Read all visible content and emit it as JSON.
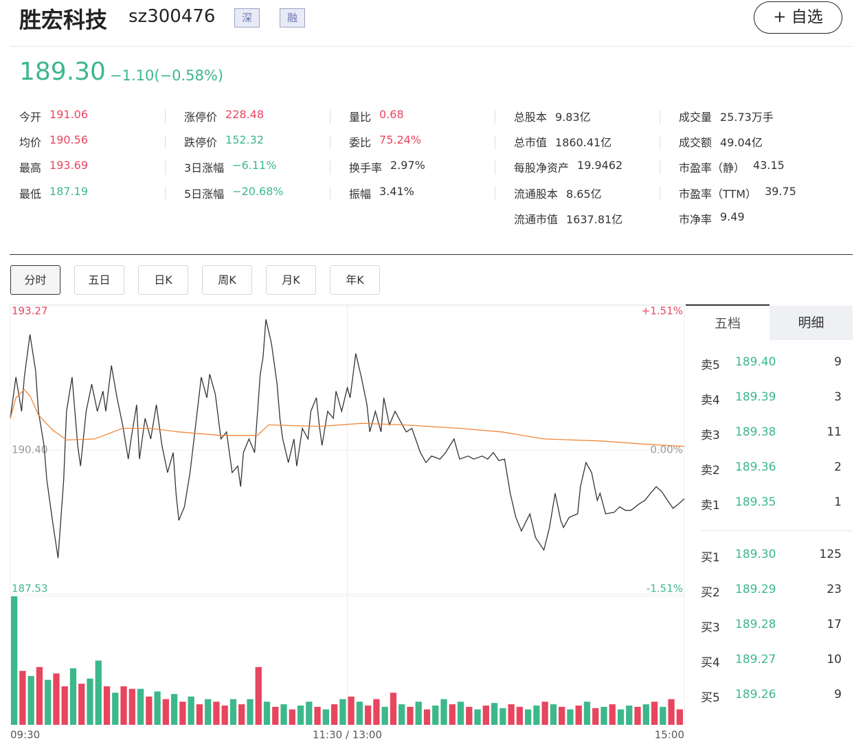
{
  "header": {
    "name": "胜宏科技",
    "code": "sz300476",
    "tags": [
      "深",
      "融"
    ],
    "button": "+ 自选"
  },
  "quote": {
    "price": "189.30",
    "change": "−1.10(−0.58%)",
    "color": "#3cb88a"
  },
  "stats": [
    [
      {
        "label": "今开",
        "value": "191.06",
        "color": "#e8455e"
      },
      {
        "label": "均价",
        "value": "190.56",
        "color": "#e8455e"
      },
      {
        "label": "最高",
        "value": "193.69",
        "color": "#e8455e"
      },
      {
        "label": "最低",
        "value": "187.19",
        "color": "#3cb88a"
      }
    ],
    [
      {
        "label": "涨停价",
        "value": "228.48",
        "color": "#e8455e"
      },
      {
        "label": "跌停价",
        "value": "152.32",
        "color": "#3cb88a"
      },
      {
        "label": "3日涨幅",
        "value": "−6.11%",
        "color": "#3cb88a"
      },
      {
        "label": "5日涨幅",
        "value": "−20.68%",
        "color": "#3cb88a"
      }
    ],
    [
      {
        "label": "量比",
        "value": "0.68",
        "color": "#e8455e"
      },
      {
        "label": "委比",
        "value": "75.24%",
        "color": "#e8455e"
      },
      {
        "label": "换手率",
        "value": "2.97%",
        "color": "#333333"
      },
      {
        "label": "振幅",
        "value": "3.41%",
        "color": "#333333"
      }
    ],
    [
      {
        "label": "总股本",
        "value": "9.83亿",
        "color": "#333333"
      },
      {
        "label": "总市值",
        "value": "1860.41亿",
        "color": "#333333"
      },
      {
        "label": "每股净资产",
        "value": "19.9462",
        "color": "#333333"
      },
      {
        "label": "流通股本",
        "value": "8.65亿",
        "color": "#333333"
      },
      {
        "label": "流通市值",
        "value": "1637.81亿",
        "color": "#333333"
      }
    ],
    [
      {
        "label": "成交量",
        "value": "25.73万手",
        "color": "#333333"
      },
      {
        "label": "成交额",
        "value": "49.04亿",
        "color": "#333333"
      },
      {
        "label": "市盈率（静）",
        "value": "43.15",
        "color": "#333333"
      },
      {
        "label": "市盈率（TTM）",
        "value": "39.75",
        "color": "#333333"
      },
      {
        "label": "市净率",
        "value": "9.49",
        "color": "#333333"
      }
    ]
  ],
  "chart_tabs": [
    "分时",
    "五日",
    "日K",
    "周K",
    "月K",
    "年K"
  ],
  "chart_data": {
    "type": "line",
    "grid": true,
    "xlim": [
      0,
      240
    ],
    "xticks": [
      {
        "value": 0,
        "label": "09:30"
      },
      {
        "value": 120,
        "label": "11:30 / 13:00"
      },
      {
        "value": 240,
        "label": "15:00"
      }
    ],
    "ylim": [
      187.53,
      193.27
    ],
    "yticks": [
      193.27,
      {
        "value": 190.4,
        "label": "190.40"
      },
      187.53
    ],
    "ytick_colors": [
      "#e8455e",
      "#999999",
      "#3cb88a"
    ],
    "y2lim": [
      -1.51,
      1.51
    ],
    "y2ticks": [
      {
        "value": 1.51,
        "label": "+1.51%"
      },
      {
        "value": 0,
        "label": "0.00%"
      },
      {
        "value": -1.51,
        "label": "-1.51%"
      }
    ],
    "series": [
      {
        "color": "#333333",
        "x": [
          0,
          2,
          4,
          5,
          7,
          9,
          10,
          12,
          13,
          15,
          17,
          19,
          20,
          22,
          24,
          25,
          27,
          29,
          31,
          33,
          34,
          36,
          38,
          40,
          42,
          43,
          45,
          46,
          48,
          50,
          52,
          54,
          56,
          58,
          59,
          60,
          62,
          64,
          66,
          68,
          70,
          71,
          73,
          75,
          77,
          79,
          81,
          82,
          83,
          85,
          87,
          89,
          90,
          91,
          93,
          95,
          96,
          97,
          99,
          101,
          102,
          104,
          106,
          107,
          109,
          110,
          111,
          113,
          115,
          116,
          118,
          120,
          121,
          123,
          125,
          127,
          128,
          130,
          132,
          133,
          135,
          137,
          139,
          141,
          143,
          146,
          148,
          150,
          153,
          155,
          158,
          160,
          163,
          165,
          168,
          170,
          172,
          174,
          176,
          178,
          180,
          182,
          185,
          187,
          190,
          192,
          194,
          196,
          197,
          199,
          202,
          203,
          205,
          207,
          209,
          210,
          212,
          215,
          217,
          219,
          221,
          224,
          226,
          228,
          230,
          232,
          234,
          236,
          238,
          240
        ],
        "values": [
          191.03,
          191.85,
          191.17,
          191.85,
          192.7,
          191.98,
          191.17,
          190.49,
          189.81,
          189.0,
          188.25,
          189.81,
          191.17,
          191.85,
          190.49,
          190.08,
          191.17,
          191.71,
          191.17,
          191.57,
          191.17,
          192.08,
          191.44,
          190.9,
          190.22,
          190.62,
          191.3,
          190.22,
          191.03,
          190.62,
          191.3,
          190.49,
          189.95,
          190.35,
          189.54,
          189.0,
          189.27,
          189.95,
          190.9,
          191.85,
          191.44,
          191.91,
          191.51,
          190.62,
          190.76,
          189.95,
          190.08,
          189.67,
          190.35,
          190.62,
          190.35,
          191.91,
          192.25,
          193.0,
          192.52,
          191.71,
          191.03,
          190.62,
          190.15,
          190.62,
          190.08,
          190.83,
          190.62,
          191.17,
          191.44,
          190.9,
          190.49,
          191.17,
          191.03,
          191.57,
          191.17,
          191.64,
          191.44,
          192.32,
          191.85,
          191.3,
          190.76,
          191.17,
          190.76,
          191.44,
          190.9,
          191.17,
          190.96,
          190.76,
          190.83,
          190.35,
          190.15,
          190.28,
          190.22,
          190.35,
          190.62,
          190.22,
          190.28,
          190.22,
          190.28,
          190.22,
          190.35,
          190.19,
          190.22,
          189.54,
          189.06,
          188.79,
          189.13,
          188.66,
          188.41,
          188.86,
          189.54,
          189.0,
          188.86,
          189.06,
          189.13,
          189.67,
          190.15,
          189.95,
          189.4,
          189.54,
          189.13,
          189.16,
          189.27,
          189.2,
          189.2,
          189.33,
          189.4,
          189.54,
          189.67,
          189.57,
          189.4,
          189.24,
          189.33,
          189.43
        ]
      },
      {
        "color": "#f0873a",
        "x": [
          0,
          2,
          5,
          7,
          10,
          15,
          20,
          30,
          40,
          50,
          60,
          75,
          88,
          92,
          110,
          125,
          140,
          160,
          175,
          190,
          210,
          225,
          240
        ],
        "values": [
          191.03,
          191.44,
          191.6,
          191.48,
          191.1,
          190.8,
          190.6,
          190.62,
          190.83,
          190.83,
          190.76,
          190.69,
          190.69,
          190.9,
          190.87,
          190.93,
          190.9,
          190.83,
          190.76,
          190.62,
          190.58,
          190.52,
          190.47
        ]
      }
    ],
    "volume": {
      "ylim": [
        0,
        100
      ],
      "values": [
        100,
        42,
        38,
        45,
        35,
        40,
        30,
        44,
        32,
        36,
        50,
        30,
        25,
        30,
        28,
        28,
        22,
        26,
        20,
        24,
        18,
        22,
        16,
        20,
        18,
        15,
        20,
        16,
        20,
        45,
        18,
        14,
        16,
        12,
        15,
        18,
        14,
        12,
        16,
        20,
        22,
        18,
        15,
        20,
        14,
        25,
        16,
        14,
        18,
        12,
        15,
        20,
        16,
        18,
        14,
        12,
        15,
        17,
        13,
        16,
        14,
        12,
        15,
        18,
        16,
        14,
        12,
        15,
        18,
        13,
        14,
        16,
        12,
        15,
        14,
        16,
        18,
        14,
        20,
        12
      ],
      "colors": [
        "#3cb88a",
        "#e8455e",
        "#3cb88a",
        "#e8455e",
        "#3cb88a",
        "#e8455e",
        "#e8455e",
        "#3cb88a",
        "#e8455e",
        "#3cb88a",
        "#3cb88a",
        "#e8455e",
        "#3cb88a",
        "#e8455e",
        "#e8455e",
        "#3cb88a",
        "#e8455e",
        "#3cb88a",
        "#e8455e",
        "#3cb88a",
        "#e8455e",
        "#3cb88a",
        "#e8455e",
        "#3cb88a",
        "#e8455e",
        "#e8455e",
        "#3cb88a",
        "#e8455e",
        "#3cb88a",
        "#e8455e",
        "#3cb88a",
        "#e8455e",
        "#3cb88a",
        "#e8455e",
        "#3cb88a",
        "#3cb88a",
        "#e8455e",
        "#3cb88a",
        "#e8455e",
        "#3cb88a",
        "#e8455e",
        "#3cb88a",
        "#e8455e",
        "#e8455e",
        "#3cb88a",
        "#e8455e",
        "#3cb88a",
        "#e8455e",
        "#3cb88a",
        "#e8455e",
        "#3cb88a",
        "#3cb88a",
        "#e8455e",
        "#3cb88a",
        "#e8455e",
        "#3cb88a",
        "#e8455e",
        "#3cb88a",
        "#3cb88a",
        "#e8455e",
        "#e8455e",
        "#3cb88a",
        "#3cb88a",
        "#e8455e",
        "#3cb88a",
        "#e8455e",
        "#3cb88a",
        "#e8455e",
        "#3cb88a",
        "#e8455e",
        "#3cb88a",
        "#e8455e",
        "#3cb88a",
        "#3cb88a",
        "#e8455e",
        "#3cb88a",
        "#e8455e",
        "#3cb88a",
        "#e8455e",
        "#e8455e"
      ]
    }
  },
  "order_book": {
    "tabs": [
      "五档",
      "明细"
    ],
    "color": "#3cb88a",
    "asks": [
      {
        "label": "卖5",
        "price": "189.40",
        "volume": "9"
      },
      {
        "label": "卖4",
        "price": "189.39",
        "volume": "3"
      },
      {
        "label": "卖3",
        "price": "189.38",
        "volume": "11"
      },
      {
        "label": "卖2",
        "price": "189.36",
        "volume": "2"
      },
      {
        "label": "卖1",
        "price": "189.35",
        "volume": "1"
      }
    ],
    "bids": [
      {
        "label": "买1",
        "price": "189.30",
        "volume": "125"
      },
      {
        "label": "买2",
        "price": "189.29",
        "volume": "23"
      },
      {
        "label": "买3",
        "price": "189.28",
        "volume": "17"
      },
      {
        "label": "买4",
        "price": "189.27",
        "volume": "10"
      },
      {
        "label": "买5",
        "price": "189.26",
        "volume": "9"
      }
    ]
  }
}
